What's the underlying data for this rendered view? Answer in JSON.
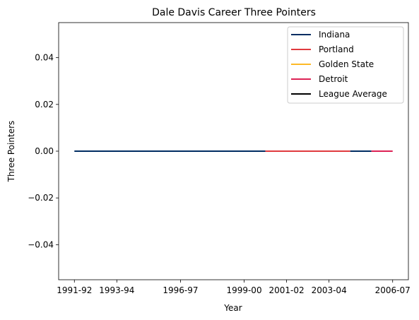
{
  "chart_data": {
    "type": "line",
    "title": "Dale Davis  Career Three Pointers",
    "xlabel": "Year",
    "ylabel": "Three Pointers",
    "x_tick_labels": [
      "1991-92",
      "1993-94",
      "1996-97",
      "1999-00",
      "2001-02",
      "2003-04",
      "2006-07"
    ],
    "ylim": [
      -0.055,
      0.055
    ],
    "y_ticks": [
      -0.04,
      -0.02,
      0.0,
      0.02,
      0.04
    ],
    "y_tick_labels": [
      "−0.04",
      "−0.02",
      "0.00",
      "0.02",
      "0.04"
    ],
    "grid": false,
    "legend_position": "top-right",
    "seasons": [
      "1991-92",
      "1992-93",
      "1993-94",
      "1994-95",
      "1995-96",
      "1996-97",
      "1997-98",
      "1998-99",
      "1999-00",
      "2000-01",
      "2001-02",
      "2002-03",
      "2003-04",
      "2004-05",
      "2005-06",
      "2006-07"
    ],
    "series": [
      {
        "name": "Indiana",
        "color": "#002D62",
        "x": [
          "1991-92",
          "1992-93",
          "1993-94",
          "1994-95",
          "1995-96",
          "1996-97",
          "1997-98",
          "1998-99",
          "1999-00",
          "2000-01"
        ],
        "y": [
          0,
          0,
          0,
          0,
          0,
          0,
          0,
          0,
          0,
          0
        ]
      },
      {
        "name": "Portland",
        "color": "#E03A3E",
        "x": [
          "2000-01",
          "2001-02",
          "2002-03",
          "2003-04",
          "2004-05"
        ],
        "y": [
          0,
          0,
          0,
          0,
          0
        ]
      },
      {
        "name": "Golden State",
        "color": "#FDB927",
        "x": [
          "2004-05"
        ],
        "y": [
          0
        ]
      },
      {
        "name": "Indiana",
        "color": "#002D62",
        "x": [
          "2004-05",
          "2005-06"
        ],
        "y": [
          0,
          0
        ]
      },
      {
        "name": "Detroit",
        "color": "#DD2255",
        "x": [
          "2005-06",
          "2006-07"
        ],
        "y": [
          0,
          0
        ]
      }
    ],
    "legend": [
      {
        "label": "Indiana",
        "color": "#002D62"
      },
      {
        "label": "Portland",
        "color": "#E03A3E"
      },
      {
        "label": "Golden State",
        "color": "#FDB927"
      },
      {
        "label": "Detroit",
        "color": "#DD2255"
      },
      {
        "label": "League Average",
        "color": "#000000"
      }
    ]
  }
}
